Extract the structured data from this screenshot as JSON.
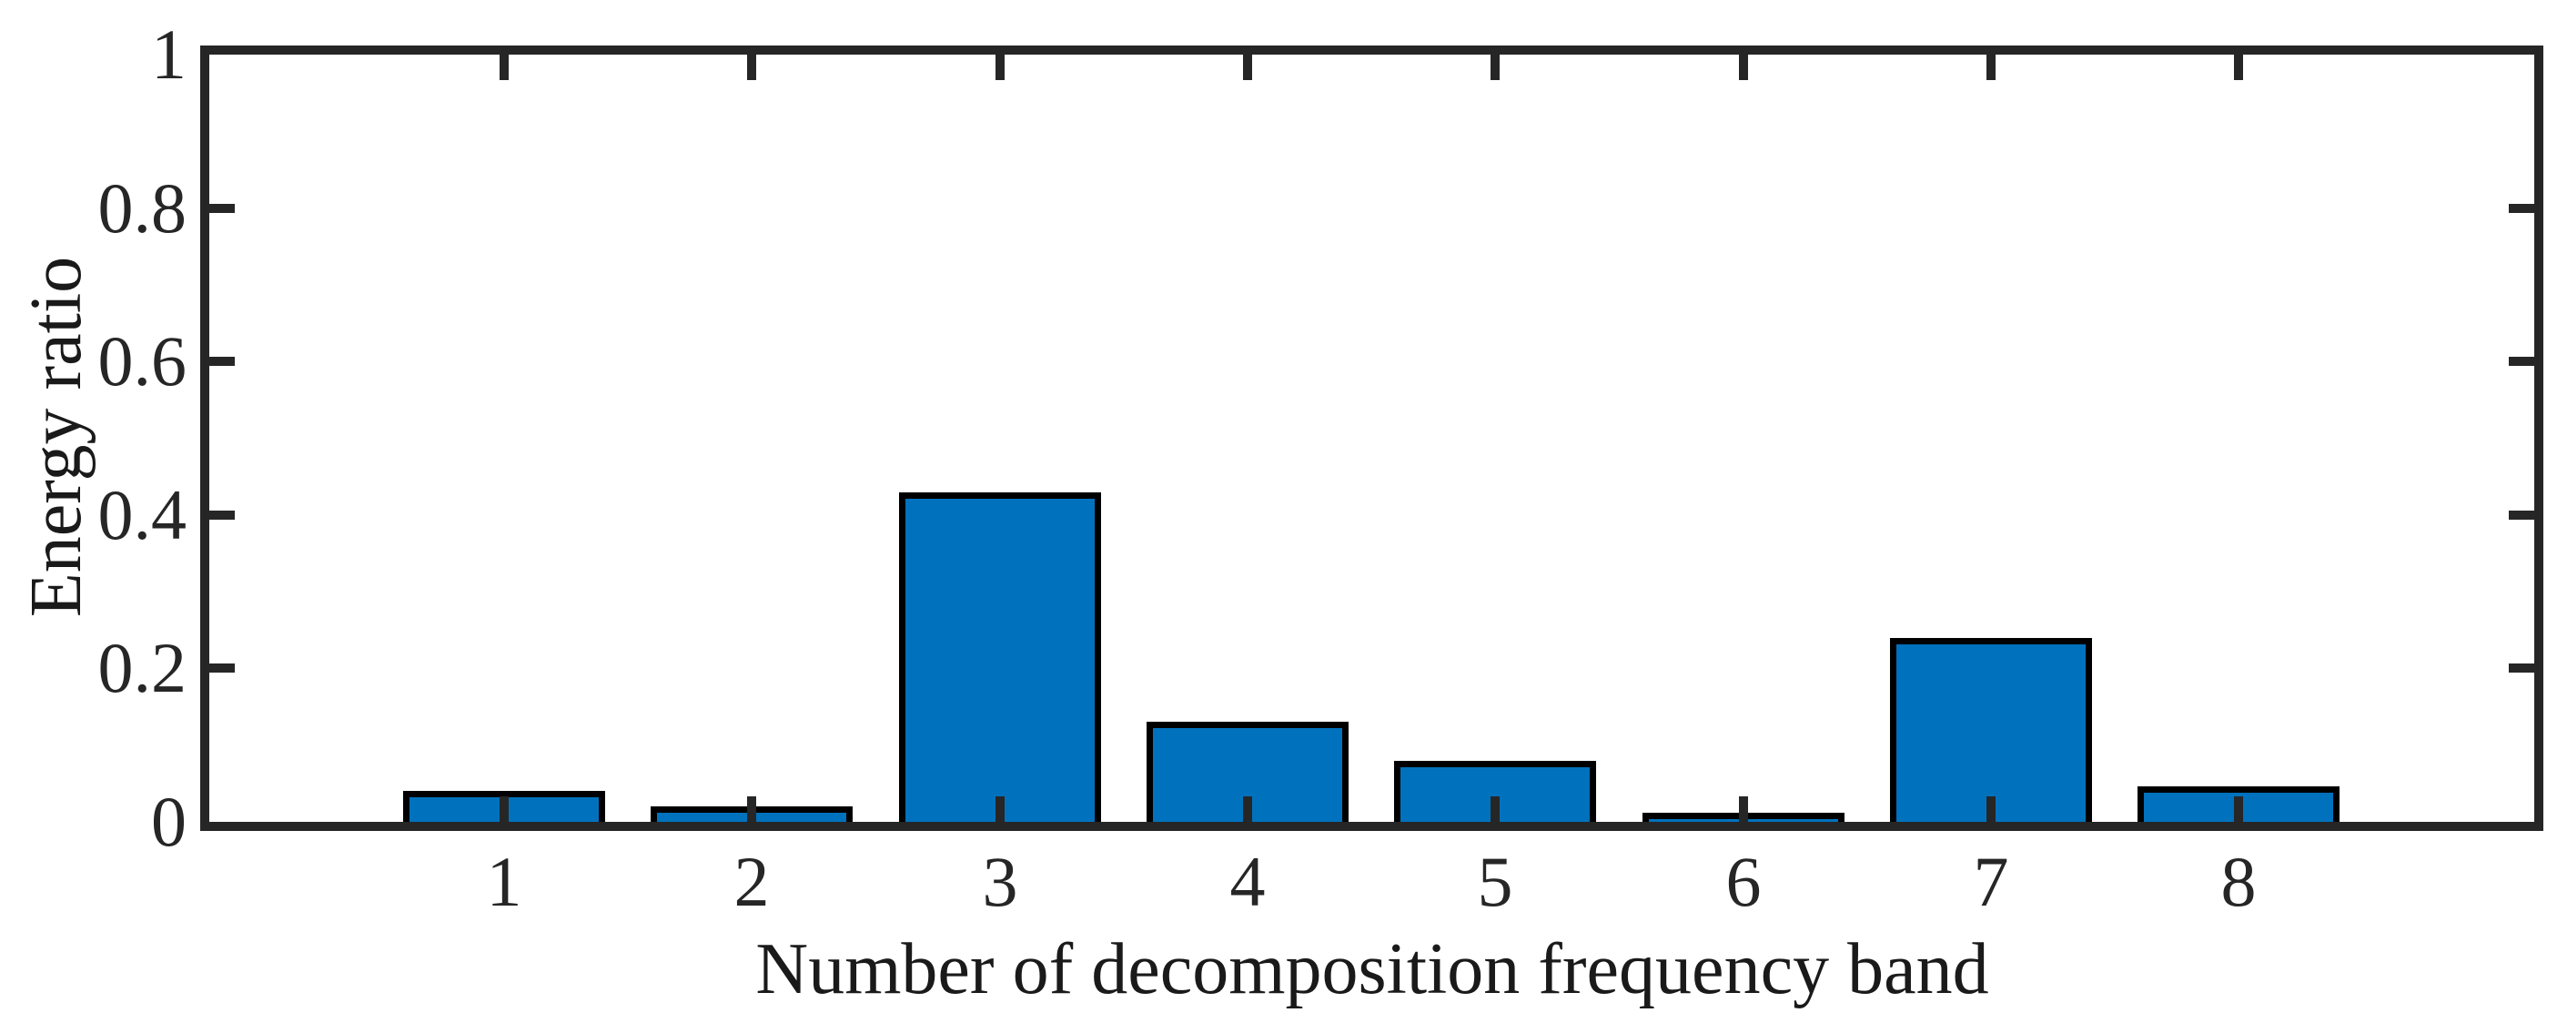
{
  "figure": {
    "background_color": "#ffffff",
    "axis_color": "#262626",
    "text_color": "#1a1a1a"
  },
  "chart_data": {
    "type": "bar",
    "title": "",
    "xlabel": "Number of decomposition frequency band",
    "ylabel": "Energy ratio",
    "categories": [
      "1",
      "2",
      "3",
      "4",
      "5",
      "6",
      "7",
      "8"
    ],
    "values": [
      0.04,
      0.02,
      0.43,
      0.13,
      0.08,
      0.012,
      0.24,
      0.046
    ],
    "yticks": [
      0,
      0.2,
      0.4,
      0.6,
      0.8,
      1
    ],
    "ytick_labels": [
      "0",
      "0.2",
      "0.4",
      "0.6",
      "0.8",
      "1"
    ],
    "ylim": [
      0,
      1
    ],
    "bar_color": "#0072BD",
    "bar_edge_color": "#000000",
    "grid": false,
    "legend_position": "none",
    "box": true,
    "tick_direction": "in"
  }
}
